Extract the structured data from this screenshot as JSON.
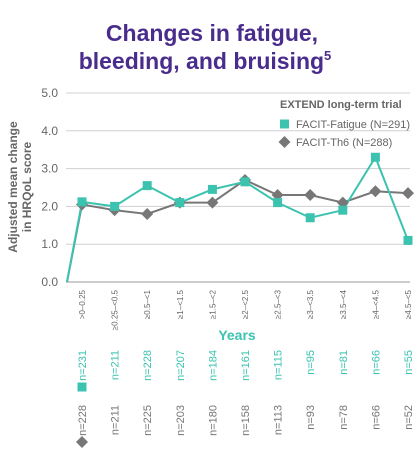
{
  "chart_data": {
    "type": "line",
    "title": "Changes in fatigue,",
    "title_line2": "bleeding, and bruising",
    "title_footnote": "5",
    "y_label": [
      "Adjusted mean change",
      "in HRQoL score"
    ],
    "x_label": "Years",
    "legend_title": "EXTEND long-term trial",
    "categories": [
      null,
      ">0–0.25",
      "≥0.25–<0.5",
      "≥0.5–<1",
      "≥1–<1.5",
      "≥1.5–<2",
      "≥2–<2.5",
      "≥2.5–<3",
      "≥3–<3.5",
      "≥3.5–<4",
      "≥4–<4.5",
      "≥4.5–<5"
    ],
    "series": [
      {
        "name": "FACIT-Th6 (N=288)",
        "color": "#777777",
        "marker": "diamond",
        "values": [
          0,
          2.05,
          1.9,
          1.8,
          2.1,
          2.1,
          2.7,
          2.3,
          2.3,
          2.1,
          2.4,
          2.35
        ],
        "n_labels": [
          "n=228",
          "n=211",
          "n=225",
          "n=203",
          "n=180",
          "n=158",
          "n=113",
          "n=93",
          "n=78",
          "n=66",
          "n=52"
        ]
      },
      {
        "name": "FACIT-Fatigue (N=291)",
        "color": "#3cc3b0",
        "marker": "square",
        "values": [
          0,
          2.12,
          2.0,
          2.55,
          2.1,
          2.45,
          2.65,
          2.1,
          1.7,
          1.9,
          3.3,
          1.1
        ],
        "n_labels": [
          "n=231",
          "n=211",
          "n=228",
          "n=207",
          "n=184",
          "n=161",
          "n=115",
          "n=95",
          "n=81",
          "n=66",
          "n=55"
        ]
      }
    ],
    "ylim": [
      0,
      5
    ],
    "yticks": [
      {
        "value": 0,
        "label": "0.0"
      },
      {
        "value": 1,
        "label": "1.0"
      },
      {
        "value": 2,
        "label": "2.0"
      },
      {
        "value": 3,
        "label": "3.0"
      },
      {
        "value": 4,
        "label": "4.0"
      },
      {
        "value": 5,
        "label": "5.0"
      }
    ],
    "grid": true
  }
}
